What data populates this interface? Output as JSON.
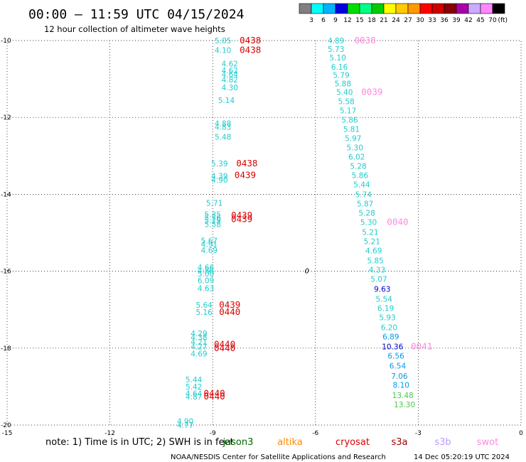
{
  "header": {
    "title": "00:00 – 11:59 UTC 04/15/2024",
    "subtitle": "12 hour collection of altimeter wave heights"
  },
  "colorbar": {
    "colors": [
      "#808080",
      "#00ffff",
      "#00b4ff",
      "#0000e0",
      "#00dd00",
      "#00ff88",
      "#00cc00",
      "#ffff00",
      "#ffcc00",
      "#ff9900",
      "#ff0000",
      "#cc0000",
      "#880000",
      "#aa00aa",
      "#ccaaff",
      "#ff88ff",
      "#000000"
    ],
    "labels": [
      "3",
      "6",
      "9",
      "12",
      "15",
      "18",
      "21",
      "24",
      "27",
      "30",
      "33",
      "36",
      "39",
      "42",
      "45",
      "70"
    ],
    "unit": "(ft)"
  },
  "chart_data": {
    "type": "scatter",
    "xlim": [
      -15,
      0
    ],
    "ylim": [
      -20,
      -10
    ],
    "x_ticks": [
      "-15",
      "-12",
      "-9",
      "-6",
      "-3",
      "0"
    ],
    "y_ticks": [
      "-10",
      "-12",
      "-14",
      "-16",
      "-18",
      "-20"
    ],
    "grid": true,
    "legend_position": "bottom",
    "series": [
      {
        "name": "jason3",
        "color": "#006600"
      },
      {
        "name": "altika",
        "color": "#ff8800"
      },
      {
        "name": "cryosat",
        "color": "#dd0000"
      },
      {
        "name": "s3a",
        "color": "#990000"
      },
      {
        "name": "s3b",
        "color": "#bb99ff"
      },
      {
        "name": "swot",
        "color": "#ff88dd"
      }
    ],
    "swh_points": [
      {
        "x": -8.7,
        "y": -10.0,
        "value": "5.05",
        "color": "#22cccc"
      },
      {
        "x": -8.7,
        "y": -10.25,
        "value": "4.10",
        "color": "#22cccc"
      },
      {
        "x": -8.5,
        "y": -10.6,
        "value": "4.62",
        "color": "#22cccc"
      },
      {
        "x": -8.5,
        "y": -10.78,
        "value": "4.62",
        "color": "#22cccc"
      },
      {
        "x": -8.5,
        "y": -10.88,
        "value": "4.64",
        "color": "#22cccc"
      },
      {
        "x": -8.5,
        "y": -11.02,
        "value": "4.82",
        "color": "#22cccc"
      },
      {
        "x": -8.5,
        "y": -11.22,
        "value": "4.30",
        "color": "#22cccc"
      },
      {
        "x": -8.6,
        "y": -11.55,
        "value": "5.14",
        "color": "#22cccc"
      },
      {
        "x": -8.7,
        "y": -12.15,
        "value": "4.88",
        "color": "#22cccc"
      },
      {
        "x": -8.7,
        "y": -12.25,
        "value": "4.83",
        "color": "#22cccc"
      },
      {
        "x": -8.7,
        "y": -12.5,
        "value": "5.48",
        "color": "#22cccc"
      },
      {
        "x": -8.8,
        "y": -13.2,
        "value": "5.39",
        "color": "#22cccc"
      },
      {
        "x": -8.8,
        "y": -13.52,
        "value": "4.39",
        "color": "#22cccc"
      },
      {
        "x": -8.8,
        "y": -13.62,
        "value": "4.90",
        "color": "#22cccc"
      },
      {
        "x": -8.95,
        "y": -14.22,
        "value": "5.71",
        "color": "#22cccc"
      },
      {
        "x": -9.0,
        "y": -14.52,
        "value": "5.35",
        "color": "#22cccc"
      },
      {
        "x": -9.0,
        "y": -14.6,
        "value": "5.56",
        "color": "#22cccc"
      },
      {
        "x": -9.0,
        "y": -14.68,
        "value": "5.19",
        "color": "#22cccc"
      },
      {
        "x": -9.0,
        "y": -14.78,
        "value": "5.58",
        "color": "#22cccc"
      },
      {
        "x": -9.1,
        "y": -15.2,
        "value": "5.67",
        "color": "#22cccc"
      },
      {
        "x": -9.1,
        "y": -15.3,
        "value": "4.91",
        "color": "#22cccc"
      },
      {
        "x": -9.1,
        "y": -15.45,
        "value": "4.69",
        "color": "#22cccc"
      },
      {
        "x": -9.2,
        "y": -15.9,
        "value": "4.66",
        "color": "#22cccc"
      },
      {
        "x": -9.2,
        "y": -15.98,
        "value": "4.86",
        "color": "#22cccc"
      },
      {
        "x": -9.2,
        "y": -16.06,
        "value": "5.00",
        "color": "#22cccc"
      },
      {
        "x": -9.2,
        "y": -16.24,
        "value": "6.09",
        "color": "#22cccc"
      },
      {
        "x": -9.2,
        "y": -16.44,
        "value": "4.63",
        "color": "#22cccc"
      },
      {
        "x": -9.25,
        "y": -16.88,
        "value": "5.64",
        "color": "#22cccc"
      },
      {
        "x": -9.25,
        "y": -17.06,
        "value": "5.16",
        "color": "#22cccc"
      },
      {
        "x": -9.4,
        "y": -17.62,
        "value": "4.29",
        "color": "#22cccc"
      },
      {
        "x": -9.4,
        "y": -17.72,
        "value": "4.38",
        "color": "#22cccc"
      },
      {
        "x": -9.4,
        "y": -17.84,
        "value": "4.21",
        "color": "#22cccc"
      },
      {
        "x": -9.4,
        "y": -17.96,
        "value": "4.27",
        "color": "#22cccc"
      },
      {
        "x": -9.4,
        "y": -18.14,
        "value": "4.69",
        "color": "#22cccc"
      },
      {
        "x": -9.55,
        "y": -18.82,
        "value": "5.44",
        "color": "#22cccc"
      },
      {
        "x": -9.55,
        "y": -19.0,
        "value": "5.42",
        "color": "#22cccc"
      },
      {
        "x": -9.55,
        "y": -19.18,
        "value": "4.64",
        "color": "#22cccc"
      },
      {
        "x": -9.55,
        "y": -19.26,
        "value": "4.87",
        "color": "#22cccc"
      },
      {
        "x": -9.8,
        "y": -19.9,
        "value": "4.90",
        "color": "#22cccc"
      },
      {
        "x": -9.8,
        "y": -20.0,
        "value": "4.77",
        "color": "#22cccc"
      },
      {
        "x": -5.4,
        "y": -10.0,
        "value": "4.89",
        "color": "#22cccc"
      },
      {
        "x": -5.4,
        "y": -10.22,
        "value": "5.73",
        "color": "#22cccc"
      },
      {
        "x": -5.35,
        "y": -10.44,
        "value": "5.10",
        "color": "#22cccc"
      },
      {
        "x": -5.3,
        "y": -10.68,
        "value": "6.16",
        "color": "#22cccc"
      },
      {
        "x": -5.25,
        "y": -10.9,
        "value": "5.79",
        "color": "#22cccc"
      },
      {
        "x": -5.2,
        "y": -11.12,
        "value": "5.88",
        "color": "#22cccc"
      },
      {
        "x": -5.15,
        "y": -11.34,
        "value": "5.40",
        "color": "#22cccc"
      },
      {
        "x": -5.1,
        "y": -11.58,
        "value": "5.58",
        "color": "#22cccc"
      },
      {
        "x": -5.05,
        "y": -11.82,
        "value": "5.17",
        "color": "#22cccc"
      },
      {
        "x": -5.0,
        "y": -12.06,
        "value": "5.86",
        "color": "#22cccc"
      },
      {
        "x": -4.95,
        "y": -12.3,
        "value": "5.81",
        "color": "#22cccc"
      },
      {
        "x": -4.9,
        "y": -12.54,
        "value": "5.97",
        "color": "#22cccc"
      },
      {
        "x": -4.85,
        "y": -12.78,
        "value": "5.30",
        "color": "#22cccc"
      },
      {
        "x": -4.8,
        "y": -13.02,
        "value": "6.02",
        "color": "#22cccc"
      },
      {
        "x": -4.75,
        "y": -13.26,
        "value": "5.28",
        "color": "#22cccc"
      },
      {
        "x": -4.7,
        "y": -13.5,
        "value": "5.86",
        "color": "#22cccc"
      },
      {
        "x": -4.65,
        "y": -13.74,
        "value": "5.44",
        "color": "#22cccc"
      },
      {
        "x": -4.6,
        "y": -14.0,
        "value": "5.74",
        "color": "#22cccc"
      },
      {
        "x": -4.55,
        "y": -14.24,
        "value": "5.87",
        "color": "#22cccc"
      },
      {
        "x": -4.5,
        "y": -14.48,
        "value": "5.28",
        "color": "#22cccc"
      },
      {
        "x": -4.45,
        "y": -14.72,
        "value": "5.30",
        "color": "#22cccc"
      },
      {
        "x": -4.4,
        "y": -14.98,
        "value": "5.21",
        "color": "#22cccc"
      },
      {
        "x": -4.35,
        "y": -15.22,
        "value": "5.21",
        "color": "#22cccc"
      },
      {
        "x": -4.3,
        "y": -15.46,
        "value": "4.69",
        "color": "#22cccc"
      },
      {
        "x": -4.25,
        "y": -15.72,
        "value": "5.85",
        "color": "#22cccc"
      },
      {
        "x": -4.2,
        "y": -15.96,
        "value": "4.33",
        "color": "#22cccc"
      },
      {
        "x": -4.15,
        "y": -16.2,
        "value": "5.07",
        "color": "#22cccc"
      },
      {
        "x": -4.05,
        "y": -16.46,
        "value": "9.63",
        "color": "#0000cc"
      },
      {
        "x": -4.0,
        "y": -16.72,
        "value": "5.54",
        "color": "#22cccc"
      },
      {
        "x": -3.95,
        "y": -16.96,
        "value": "6.19",
        "color": "#22cccc"
      },
      {
        "x": -3.9,
        "y": -17.2,
        "value": "5.93",
        "color": "#22cccc"
      },
      {
        "x": -3.85,
        "y": -17.46,
        "value": "6.20",
        "color": "#22cccc"
      },
      {
        "x": -3.8,
        "y": -17.7,
        "value": "6.89",
        "color": "#0099ee"
      },
      {
        "x": -3.75,
        "y": -17.96,
        "value": "10.36",
        "color": "#0000cc"
      },
      {
        "x": -3.65,
        "y": -18.2,
        "value": "6.56",
        "color": "#0099ee"
      },
      {
        "x": -3.6,
        "y": -18.46,
        "value": "6.54",
        "color": "#0099ee"
      },
      {
        "x": -3.55,
        "y": -18.72,
        "value": "7.06",
        "color": "#0099ee"
      },
      {
        "x": -3.5,
        "y": -18.96,
        "value": "8.10",
        "color": "#0099ee"
      },
      {
        "x": -3.45,
        "y": -19.22,
        "value": "13.48",
        "color": "#44cc44"
      },
      {
        "x": -3.4,
        "y": -19.46,
        "value": "13.30",
        "color": "#44cc44"
      }
    ],
    "track_labels": [
      {
        "x": -7.9,
        "y": -10.0,
        "text": "0438",
        "color": "#dd0000"
      },
      {
        "x": -7.9,
        "y": -10.25,
        "text": "0438",
        "color": "#dd0000"
      },
      {
        "x": -8.0,
        "y": -13.2,
        "text": "0438",
        "color": "#dd0000"
      },
      {
        "x": -8.05,
        "y": -13.5,
        "text": "0439",
        "color": "#dd0000"
      },
      {
        "x": -8.15,
        "y": -14.55,
        "text": "0439",
        "color": "#dd0000"
      },
      {
        "x": -8.15,
        "y": -14.65,
        "text": "0439",
        "color": "#dd0000"
      },
      {
        "x": -8.5,
        "y": -16.88,
        "text": "0439",
        "color": "#dd0000"
      },
      {
        "x": -8.5,
        "y": -17.06,
        "text": "0440",
        "color": "#dd0000"
      },
      {
        "x": -8.65,
        "y": -17.9,
        "text": "0440",
        "color": "#dd0000"
      },
      {
        "x": -8.65,
        "y": -18.0,
        "text": "0440",
        "color": "#dd0000"
      },
      {
        "x": -8.95,
        "y": -19.18,
        "text": "0440",
        "color": "#dd0000"
      },
      {
        "x": -8.95,
        "y": -19.26,
        "text": "0440",
        "color": "#dd0000"
      },
      {
        "x": -4.55,
        "y": -10.0,
        "text": "0038",
        "color": "#ff88dd"
      },
      {
        "x": -4.35,
        "y": -11.34,
        "text": "0039",
        "color": "#ff88dd"
      },
      {
        "x": -3.6,
        "y": -14.72,
        "text": "0040",
        "color": "#ff88dd"
      },
      {
        "x": -2.9,
        "y": -17.96,
        "text": "0041",
        "color": "#ff88dd"
      }
    ],
    "misc_marks": [
      {
        "x": -6.25,
        "y": -15.98,
        "text": "0"
      }
    ]
  },
  "footer": {
    "note": "note: 1) Time is in UTC; 2) SWH is in feet",
    "credit": "NOAA/NESDIS Center for Satellite Applications and Research",
    "timestamp": "14 Dec 05:20:19 UTC 2024"
  }
}
